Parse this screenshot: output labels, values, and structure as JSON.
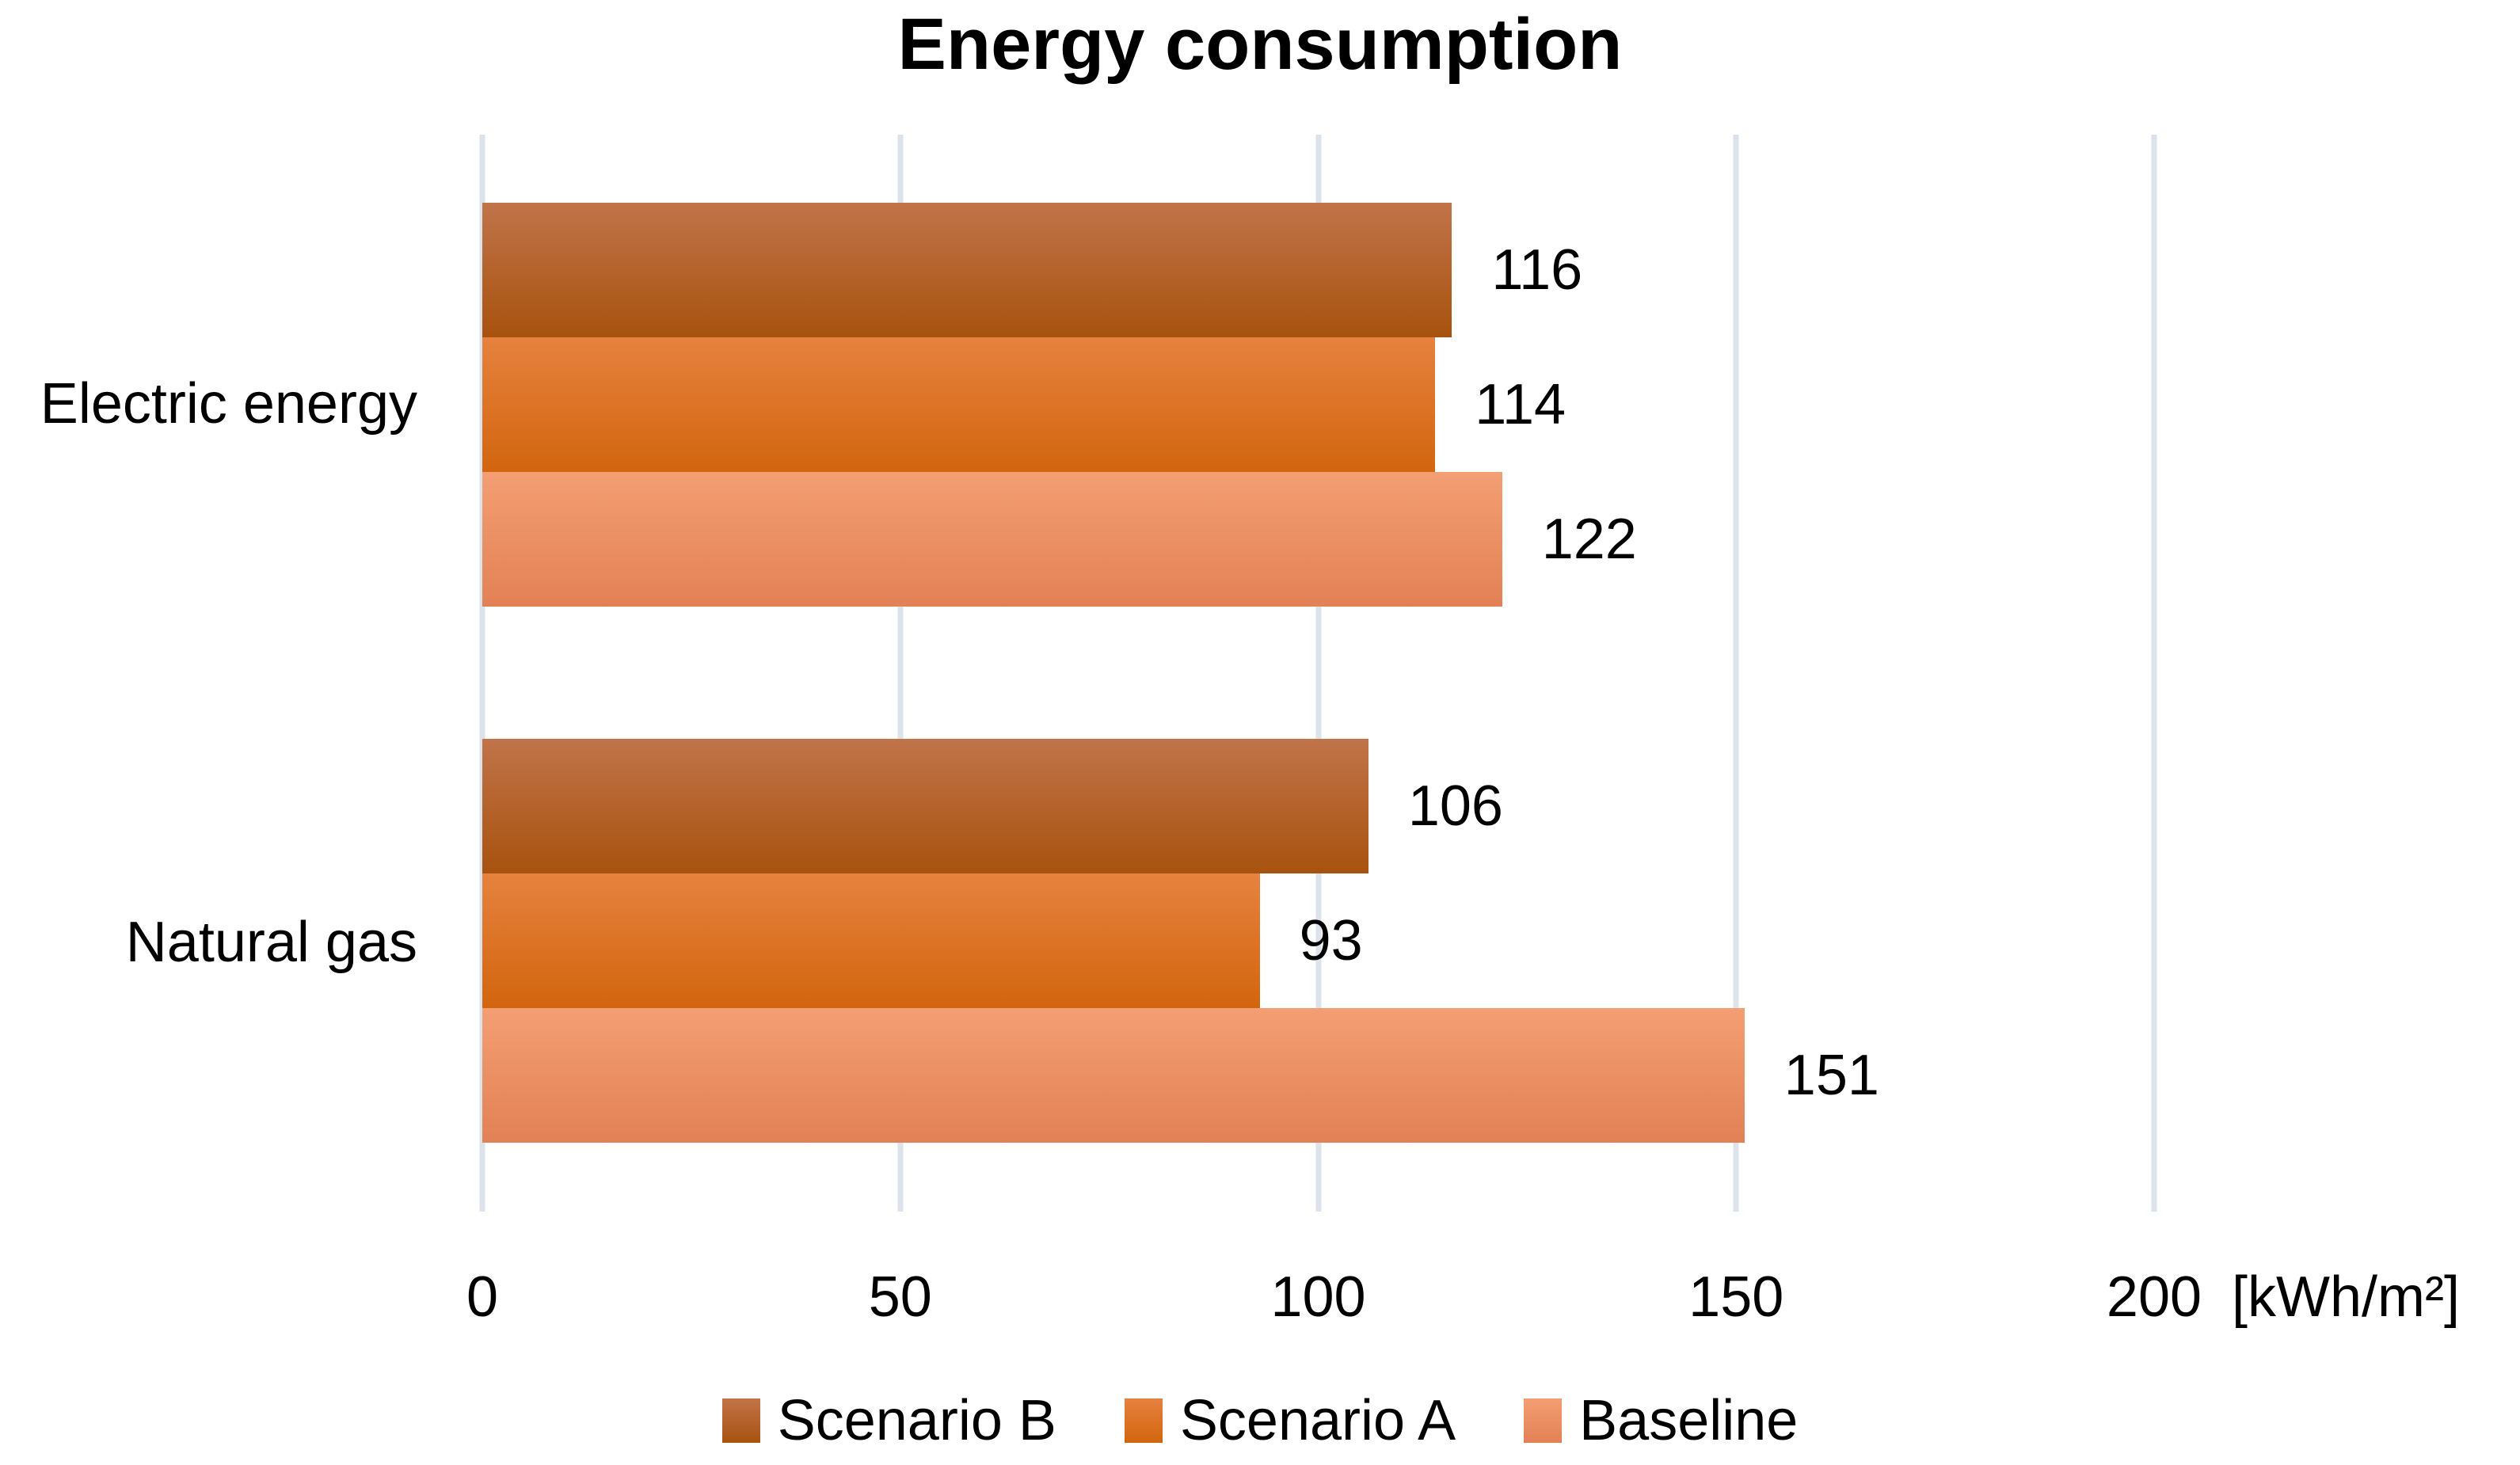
{
  "chart_data": {
    "type": "bar",
    "orientation": "horizontal",
    "title": "Energy consumption",
    "categories": [
      "Electric energy",
      "Natural gas"
    ],
    "series": [
      {
        "name": "Scenario B",
        "values": [
          116,
          106
        ],
        "color_top": "#c1744a",
        "color_bottom": "#a8520f"
      },
      {
        "name": "Scenario A",
        "values": [
          114,
          93
        ],
        "color_top": "#e6823f",
        "color_bottom": "#d2650e"
      },
      {
        "name": "Baseline",
        "values": [
          122,
          151
        ],
        "color_top": "#f49e74",
        "color_bottom": "#e28155"
      }
    ],
    "xlim": [
      0,
      200
    ],
    "xticks": [
      "0",
      "50",
      "100",
      "150",
      "200"
    ],
    "x_unit_label": "[kWh/m²]",
    "legend": [
      "Scenario B",
      "Scenario A",
      "Baseline"
    ],
    "legend_position": "bottom",
    "grid": "vertical",
    "gridline_color": "#dde3ea",
    "background_color": "#ffffff",
    "text_color": "#000000"
  }
}
